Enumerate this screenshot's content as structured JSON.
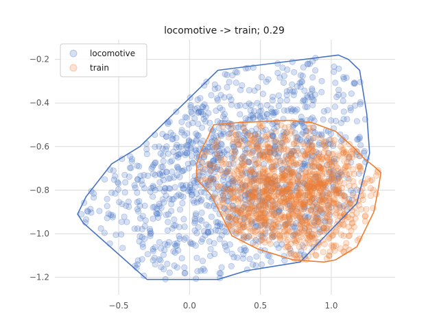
{
  "chart_data": {
    "type": "scatter",
    "title": "locomotive -> train; 0.29",
    "xlabel": "",
    "ylabel": "",
    "xlim": [
      -0.95,
      1.45
    ],
    "ylim": [
      -1.28,
      -0.11
    ],
    "x_ticks": [
      -0.5,
      0.0,
      0.5,
      1.0
    ],
    "x_tick_labels": [
      "−0.5",
      "0.0",
      "0.5",
      "1.0"
    ],
    "y_ticks": [
      -0.2,
      -0.4,
      -0.6,
      -0.8,
      -1.0,
      -1.2
    ],
    "y_tick_labels": [
      "−0.2",
      "−0.4",
      "−0.6",
      "−0.8",
      "−1.0",
      "−1.2"
    ],
    "grid": true,
    "legend_position": "top-left",
    "point_count_each": 1200,
    "series": [
      {
        "name": "locomotive",
        "color": "#4472c4",
        "point_alpha": 0.22,
        "sample_region": {
          "x_range": [
            -0.8,
            1.25
          ],
          "y_range": [
            -1.21,
            -0.19
          ],
          "center": [
            0.5,
            -0.75
          ]
        },
        "hull": [
          [
            -0.79,
            -0.91
          ],
          [
            -0.73,
            -0.83
          ],
          [
            -0.55,
            -0.68
          ],
          [
            -0.35,
            -0.6
          ],
          [
            0.2,
            -0.25
          ],
          [
            1.05,
            -0.18
          ],
          [
            1.12,
            -0.2
          ],
          [
            1.2,
            -0.25
          ],
          [
            1.25,
            -0.45
          ],
          [
            1.27,
            -0.63
          ],
          [
            1.18,
            -0.86
          ],
          [
            0.78,
            -1.13
          ],
          [
            0.4,
            -1.17
          ],
          [
            0.2,
            -1.21
          ],
          [
            -0.3,
            -1.21
          ],
          [
            -0.75,
            -0.95
          ]
        ]
      },
      {
        "name": "train",
        "color": "#ed7d31",
        "point_alpha": 0.22,
        "sample_region": {
          "x_range": [
            0.0,
            1.35
          ],
          "y_range": [
            -1.13,
            -0.48
          ],
          "center": [
            0.72,
            -0.85
          ]
        },
        "hull": [
          [
            0.12,
            -0.57
          ],
          [
            0.17,
            -0.5
          ],
          [
            0.35,
            -0.49
          ],
          [
            0.7,
            -0.48
          ],
          [
            0.86,
            -0.49
          ],
          [
            1.03,
            -0.53
          ],
          [
            1.15,
            -0.6
          ],
          [
            1.24,
            -0.66
          ],
          [
            1.3,
            -0.69
          ],
          [
            1.35,
            -0.72
          ],
          [
            1.33,
            -0.8
          ],
          [
            1.3,
            -0.9
          ],
          [
            1.18,
            -1.06
          ],
          [
            1.03,
            -1.12
          ],
          [
            0.95,
            -1.13
          ],
          [
            0.73,
            -1.12
          ],
          [
            0.48,
            -1.07
          ],
          [
            0.3,
            -1.01
          ],
          [
            0.15,
            -0.82
          ],
          [
            0.05,
            -0.75
          ],
          [
            0.05,
            -0.68
          ],
          [
            0.08,
            -0.62
          ]
        ]
      }
    ]
  }
}
